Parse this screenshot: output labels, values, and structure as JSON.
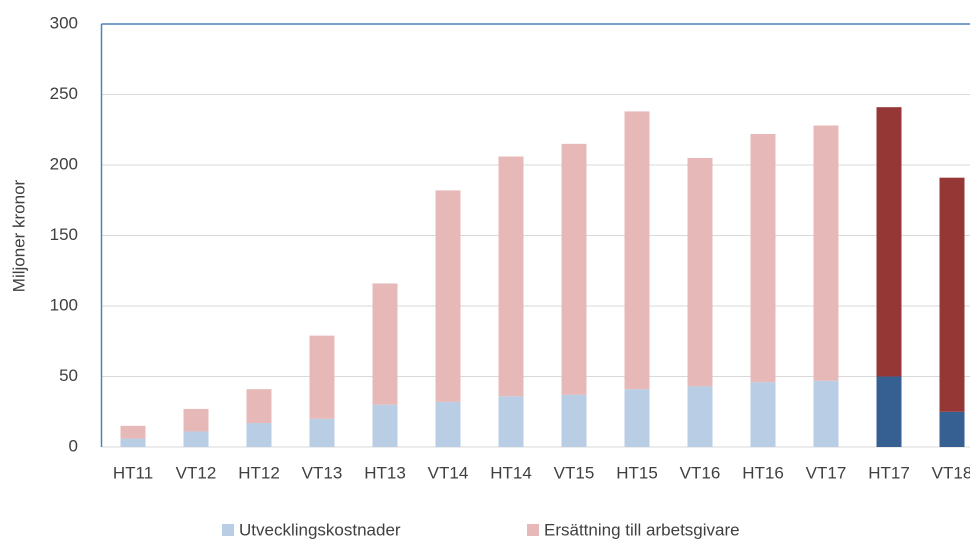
{
  "chart_data": {
    "type": "stacked_bar",
    "y_label": "Miljoner kronor",
    "categories": [
      "HT11",
      "VT12",
      "HT12",
      "VT13",
      "HT13",
      "VT14",
      "HT14",
      "VT15",
      "HT15",
      "VT16",
      "HT16",
      "VT17",
      "HT17",
      "VT18"
    ],
    "series": [
      {
        "name": "Utvecklingskostnader",
        "color": "#b9cde5",
        "point_colors": [
          "#b9cde5",
          "#b9cde5",
          "#b9cde5",
          "#b9cde5",
          "#b9cde5",
          "#b9cde5",
          "#b9cde5",
          "#b9cde5",
          "#b9cde5",
          "#b9cde5",
          "#b9cde5",
          "#b9cde5",
          "#376092",
          "#376092"
        ],
        "values": [
          6,
          11,
          17,
          20,
          30,
          32,
          36,
          37,
          41,
          43,
          46,
          47,
          50,
          25
        ]
      },
      {
        "name": "Ersättning till arbetsgivare",
        "color": "#e6b9b8",
        "point_colors": [
          "#e6b9b8",
          "#e6b9b8",
          "#e6b9b8",
          "#e6b9b8",
          "#e6b9b8",
          "#e6b9b8",
          "#e6b9b8",
          "#e6b9b8",
          "#e6b9b8",
          "#e6b9b8",
          "#e6b9b8",
          "#e6b9b8",
          "#953735",
          "#953735"
        ],
        "values": [
          9,
          16,
          24,
          59,
          86,
          150,
          170,
          178,
          197,
          162,
          176,
          181,
          191,
          166
        ]
      }
    ],
    "ylim": [
      0,
      300
    ],
    "yticks": [
      0,
      50,
      100,
      150,
      200,
      250,
      300
    ],
    "grid": true,
    "legend": "bottom"
  }
}
